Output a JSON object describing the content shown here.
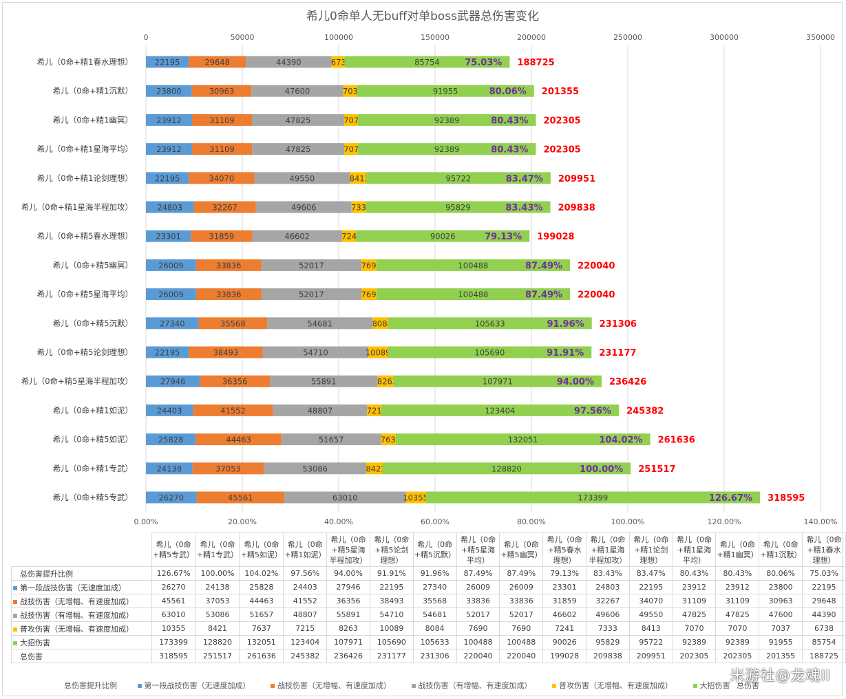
{
  "chart_data": {
    "type": "bar",
    "orientation": "horizontal",
    "stacked": true,
    "title": "希儿0命单人无buff对单boss武器总伤害变化",
    "primary_axis": {
      "min": 0,
      "max": 350000,
      "ticks": [
        "0",
        "50000",
        "100000",
        "150000",
        "200000",
        "250000",
        "300000",
        "350000"
      ]
    },
    "secondary_axis": {
      "min": 0,
      "max": 1.4,
      "ticks": [
        "0.00%",
        "20.00%",
        "40.00%",
        "60.00%",
        "80.00%",
        "100.00%",
        "120.00%",
        "140.00%"
      ]
    },
    "grid": true,
    "legend_position": "bottom",
    "categories": [
      "希儿（0命+精1春水理想）",
      "希儿（0命+精1沉默）",
      "希儿（0命+精1幽冥）",
      "希儿（0命+精1星海平均）",
      "希儿（0命+精1论剑理想）",
      "希儿（0命+精1星海半程加攻）",
      "希儿（0命+精5春水理想）",
      "希儿（0命+精5幽冥）",
      "希儿（0命+精5星海平均）",
      "希儿（0命+精5沉默）",
      "希儿（0命+精5论剑理想）",
      "希儿（0命+精5星海半程加攻）",
      "希儿（0命+精1如泥）",
      "希儿（0命+精5如泥）",
      "希儿（0命+精1专武）",
      "希儿（0命+精5专武）"
    ],
    "ratio_series": {
      "name": "总伤害提升比例",
      "color": "#7030a0",
      "labels": [
        "75.03%",
        "80.06%",
        "80.43%",
        "80.43%",
        "83.47%",
        "83.43%",
        "79.13%",
        "87.49%",
        "87.49%",
        "91.96%",
        "91.91%",
        "94.00%",
        "97.56%",
        "104.02%",
        "100.00%",
        "126.67%"
      ]
    },
    "total_series": {
      "name": "总伤害",
      "color": "#ff0000",
      "values": [
        188725,
        201355,
        202305,
        202305,
        209951,
        209838,
        199028,
        220040,
        220040,
        231306,
        231177,
        236426,
        245382,
        261636,
        251517,
        318595
      ]
    },
    "series": [
      {
        "name": "第一段战技伤害（无速度加成）",
        "color": "#5b9bd5",
        "values": [
          22195,
          23800,
          23912,
          23912,
          22195,
          24803,
          23301,
          26009,
          26009,
          27340,
          22195,
          27946,
          24403,
          25828,
          24138,
          26270
        ]
      },
      {
        "name": "战技伤害（无增幅、有速度加成）",
        "color": "#ed7d31",
        "values": [
          29648,
          30963,
          31109,
          31109,
          34070,
          32267,
          31859,
          33836,
          33836,
          35568,
          38493,
          36356,
          41552,
          44463,
          37053,
          45561
        ]
      },
      {
        "name": "战技伤害（有增幅、有速度加成）",
        "color": "#a5a5a5",
        "values": [
          44390,
          47600,
          47825,
          47825,
          49550,
          49606,
          46602,
          52017,
          52017,
          54681,
          54710,
          55891,
          48807,
          51657,
          53086,
          63010
        ]
      },
      {
        "name": "普攻伤害（无增幅、有速度加成）",
        "color": "#ffc000",
        "values": [
          6738,
          7037,
          7070,
          7070,
          8413,
          7333,
          7241,
          7690,
          7690,
          8084,
          10089,
          8263,
          7215,
          7637,
          8421,
          10355
        ]
      },
      {
        "name": "大招伤害",
        "color": "#92d050",
        "values": [
          85754,
          91955,
          92389,
          92389,
          95722,
          95829,
          90026,
          100488,
          100488,
          105633,
          105690,
          107971,
          123404,
          132051,
          128820,
          173399
        ]
      }
    ]
  },
  "table": {
    "columns": [
      "希儿（0命+精5专武）",
      "希儿（0命+精1专武）",
      "希儿（0命+精5如泥）",
      "希儿（0命+精1如泥）",
      "希儿（0命+精5星海半程加攻）",
      "希儿（0命+精5论剑理想）",
      "希儿（0命+精5沉默）",
      "希儿（0命+精5星海平均）",
      "希儿（0命+精5幽冥）",
      "希儿（0命+精5春水理想）",
      "希儿（0命+精1星海半程加攻）",
      "希儿（0命+精1论剑理想）",
      "希儿（0命+精1星海平均）",
      "希儿（0命+精1幽冥）",
      "希儿（0命+精1沉默）",
      "希儿（0命+精1春水理想）"
    ],
    "rows": [
      {
        "label": "总伤害提升比例",
        "color": "",
        "cells": [
          "126.67%",
          "100.00%",
          "104.02%",
          "97.56%",
          "94.00%",
          "91.91%",
          "91.96%",
          "87.49%",
          "87.49%",
          "79.13%",
          "83.43%",
          "83.47%",
          "80.43%",
          "80.43%",
          "80.06%",
          "75.03%"
        ]
      },
      {
        "label": "第一段战技伤害（无速度加成）",
        "color": "#5b9bd5",
        "cells": [
          "26270",
          "24138",
          "25828",
          "24403",
          "27946",
          "22195",
          "27340",
          "26009",
          "26009",
          "23301",
          "24803",
          "22195",
          "23912",
          "23912",
          "23800",
          "22195"
        ]
      },
      {
        "label": "战技伤害（无增幅、有速度加成）",
        "color": "#ed7d31",
        "cells": [
          "45561",
          "37053",
          "44463",
          "41552",
          "36356",
          "38493",
          "35568",
          "33836",
          "33836",
          "31859",
          "32267",
          "34070",
          "31109",
          "31109",
          "30963",
          "29648"
        ]
      },
      {
        "label": "战技伤害（有增幅、有速度加成）",
        "color": "#a5a5a5",
        "cells": [
          "63010",
          "53086",
          "51657",
          "48807",
          "55891",
          "54710",
          "54681",
          "52017",
          "52017",
          "46602",
          "49606",
          "49550",
          "47825",
          "47825",
          "47600",
          "44390"
        ]
      },
      {
        "label": "普攻伤害（无增幅、有速度加成）",
        "color": "#ffc000",
        "cells": [
          "10355",
          "8421",
          "7637",
          "7215",
          "8263",
          "10089",
          "8084",
          "7690",
          "7690",
          "7241",
          "7333",
          "8413",
          "7070",
          "7070",
          "7037",
          "6738"
        ]
      },
      {
        "label": "大招伤害",
        "color": "#92d050",
        "cells": [
          "173399",
          "128820",
          "132051",
          "123404",
          "107971",
          "105690",
          "105633",
          "100488",
          "100488",
          "90026",
          "95829",
          "95722",
          "92389",
          "92389",
          "91955",
          "85754"
        ]
      },
      {
        "label": "总伤害",
        "color": "",
        "cells": [
          "318595",
          "251517",
          "261636",
          "245382",
          "236426",
          "231177",
          "231306",
          "220040",
          "220040",
          "199028",
          "209838",
          "209951",
          "202305",
          "202305",
          "201355",
          "188725"
        ]
      }
    ]
  },
  "legend": {
    "ratio": "总伤害提升比例",
    "s1": "第一段战技伤害（无速度加成）",
    "s2": "战技伤害（无增幅、有速度加成）",
    "s3": "战技伤害（有增幅、有速度加成）",
    "s4": "普攻伤害（无增幅、有速度加成）",
    "s5": "大招伤害",
    "total": "总伤害"
  },
  "watermark": "米游社@龙魂II"
}
